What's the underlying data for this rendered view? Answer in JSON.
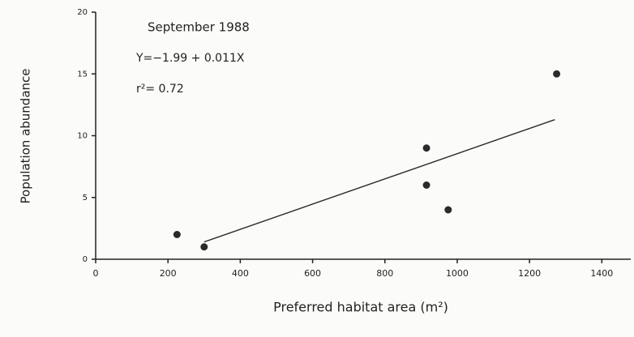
{
  "chart_data": {
    "type": "scatter",
    "annotations": [
      "September 1988",
      "Y=−1.99 + 0.011X",
      "r²= 0.72"
    ],
    "x_label": "Preferred habitat area (m²)",
    "y_label": "Population abundance",
    "x": [
      225,
      300,
      915,
      915,
      975,
      1275
    ],
    "values": [
      2,
      1,
      9,
      6,
      4,
      15
    ],
    "color": "#2a2a2a",
    "trend_line": {
      "x": [
        300,
        1270
      ],
      "values": [
        1.4,
        11.3
      ]
    },
    "xlim": [
      0,
      1480
    ],
    "xticks": [
      0,
      200,
      400,
      600,
      800,
      1000,
      1200,
      1400
    ],
    "ylim": [
      0,
      20
    ],
    "yticks": [
      0,
      5,
      10,
      15,
      20
    ],
    "grid": false
  }
}
